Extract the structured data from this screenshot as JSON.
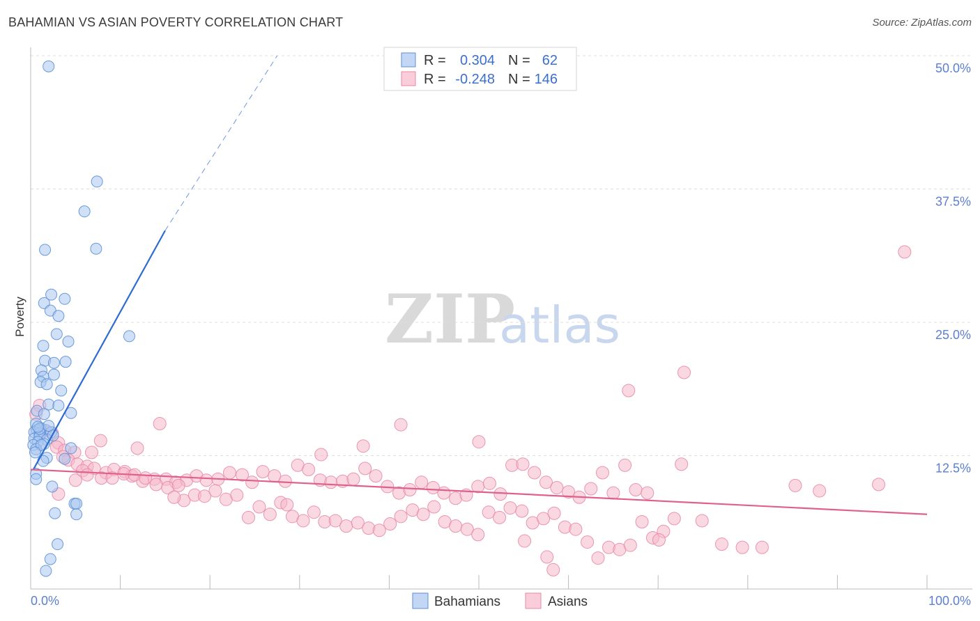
{
  "title": "BAHAMIAN VS ASIAN POVERTY CORRELATION CHART",
  "source": "Source: ZipAtlas.com",
  "watermark": {
    "zip": "ZIP",
    "atlas": "atlas"
  },
  "colors": {
    "bahamians_fill": "#a9c6f0",
    "bahamians_stroke": "#5b8fd6",
    "bahamians_line": "#2e6bd1",
    "asians_fill": "#f6b8cb",
    "asians_stroke": "#e889a8",
    "asians_line": "#e0608d",
    "tick_label": "#5b7fd1",
    "grid": "#dddddd"
  },
  "legend": {
    "r_label": "R =",
    "n_label": "N =",
    "rows": [
      {
        "series": "Bahamians",
        "r": "0.304",
        "n": "62"
      },
      {
        "series": "Asians",
        "r": "-0.248",
        "n": "146"
      }
    ]
  },
  "chart_data": {
    "type": "scatter",
    "xlabel": "",
    "ylabel": "Poverty",
    "xlim": [
      0,
      100
    ],
    "ylim": [
      0,
      50
    ],
    "x_tick_labels": [
      "0.0%",
      "100.0%"
    ],
    "y_ticks": [
      12.5,
      25.0,
      37.5,
      50.0
    ],
    "y_tick_labels": [
      "12.5%",
      "25.0%",
      "37.5%",
      "50.0%"
    ],
    "grid": "horizontal dashed",
    "legend_position": "top-center and bottom",
    "series": [
      {
        "name": "Bahamians",
        "trend": {
          "x0": 0.3,
          "y0": 11.2,
          "x1": 15.0,
          "y1": 33.6,
          "dashed_to_x": 27.5,
          "dashed_to_y": 50.0
        },
        "points": [
          [
            2.0,
            49.0
          ],
          [
            7.4,
            38.2
          ],
          [
            6.0,
            35.4
          ],
          [
            1.6,
            31.8
          ],
          [
            7.3,
            31.9
          ],
          [
            2.3,
            27.6
          ],
          [
            1.5,
            26.8
          ],
          [
            2.2,
            26.1
          ],
          [
            3.8,
            27.2
          ],
          [
            3.1,
            25.6
          ],
          [
            11.0,
            23.7
          ],
          [
            2.9,
            23.9
          ],
          [
            1.4,
            22.8
          ],
          [
            4.2,
            23.2
          ],
          [
            1.6,
            21.4
          ],
          [
            2.6,
            21.2
          ],
          [
            3.9,
            21.3
          ],
          [
            1.2,
            20.5
          ],
          [
            1.4,
            19.9
          ],
          [
            2.6,
            20.1
          ],
          [
            1.1,
            19.4
          ],
          [
            1.8,
            19.2
          ],
          [
            3.4,
            18.6
          ],
          [
            2.0,
            17.3
          ],
          [
            3.1,
            17.2
          ],
          [
            0.7,
            16.7
          ],
          [
            1.5,
            16.4
          ],
          [
            4.5,
            16.5
          ],
          [
            0.6,
            15.5
          ],
          [
            1.1,
            15.1
          ],
          [
            0.7,
            14.9
          ],
          [
            1.7,
            14.9
          ],
          [
            2.3,
            14.7
          ],
          [
            0.4,
            14.7
          ],
          [
            1.0,
            14.6
          ],
          [
            0.4,
            14.1
          ],
          [
            1.0,
            14.3
          ],
          [
            1.8,
            14.0
          ],
          [
            2.5,
            14.4
          ],
          [
            0.8,
            13.8
          ],
          [
            0.3,
            13.5
          ],
          [
            1.5,
            13.6
          ],
          [
            0.6,
            13.1
          ],
          [
            1.2,
            13.5
          ],
          [
            4.5,
            13.2
          ],
          [
            0.5,
            12.8
          ],
          [
            1.8,
            12.3
          ],
          [
            3.8,
            12.2
          ],
          [
            1.4,
            12.0
          ],
          [
            0.6,
            10.8
          ],
          [
            0.6,
            10.3
          ],
          [
            2.4,
            9.6
          ],
          [
            4.9,
            8.0
          ],
          [
            5.1,
            8.0
          ],
          [
            2.7,
            7.1
          ],
          [
            5.1,
            7.0
          ],
          [
            3.0,
            4.2
          ],
          [
            2.2,
            2.8
          ],
          [
            1.7,
            1.7
          ],
          [
            1.0,
            15.0
          ],
          [
            2.0,
            15.3
          ],
          [
            0.8,
            15.2
          ]
        ]
      },
      {
        "name": "Asians",
        "trend": {
          "x0": 0.0,
          "y0": 11.2,
          "x1": 100.0,
          "y1": 7.0
        },
        "points": [
          [
            97.5,
            31.6
          ],
          [
            72.9,
            20.3
          ],
          [
            66.7,
            18.6
          ],
          [
            41.3,
            15.4
          ],
          [
            14.4,
            15.5
          ],
          [
            50.0,
            13.8
          ],
          [
            7.8,
            13.9
          ],
          [
            37.1,
            13.4
          ],
          [
            11.9,
            13.2
          ],
          [
            32.4,
            12.6
          ],
          [
            1.0,
            17.2
          ],
          [
            0.6,
            16.4
          ],
          [
            1.5,
            14.8
          ],
          [
            2.4,
            14.6
          ],
          [
            3.1,
            13.7
          ],
          [
            2.9,
            13.3
          ],
          [
            3.8,
            13.0
          ],
          [
            4.9,
            12.8
          ],
          [
            6.8,
            12.8
          ],
          [
            4.2,
            12.1
          ],
          [
            3.6,
            12.4
          ],
          [
            5.2,
            11.7
          ],
          [
            6.3,
            11.5
          ],
          [
            7.1,
            11.3
          ],
          [
            5.8,
            11.1
          ],
          [
            8.4,
            10.9
          ],
          [
            9.3,
            11.2
          ],
          [
            10.5,
            11.0
          ],
          [
            11.3,
            10.6
          ],
          [
            12.5,
            10.1
          ],
          [
            13.8,
            10.3
          ],
          [
            15.1,
            10.3
          ],
          [
            16.2,
            10.0
          ],
          [
            17.4,
            10.2
          ],
          [
            18.5,
            10.6
          ],
          [
            19.6,
            10.2
          ],
          [
            20.9,
            10.3
          ],
          [
            22.2,
            10.9
          ],
          [
            23.6,
            10.7
          ],
          [
            24.7,
            10.0
          ],
          [
            25.9,
            11.0
          ],
          [
            27.2,
            10.6
          ],
          [
            28.4,
            10.1
          ],
          [
            29.8,
            11.6
          ],
          [
            31.0,
            11.2
          ],
          [
            32.3,
            10.2
          ],
          [
            33.5,
            10.0
          ],
          [
            34.8,
            10.1
          ],
          [
            36.0,
            10.3
          ],
          [
            37.3,
            11.3
          ],
          [
            38.5,
            10.6
          ],
          [
            39.8,
            9.6
          ],
          [
            41.1,
            9.0
          ],
          [
            42.3,
            9.3
          ],
          [
            43.6,
            10.0
          ],
          [
            44.9,
            9.5
          ],
          [
            46.1,
            9.0
          ],
          [
            47.4,
            8.5
          ],
          [
            48.6,
            8.8
          ],
          [
            49.9,
            9.6
          ],
          [
            51.2,
            9.9
          ],
          [
            52.4,
            8.9
          ],
          [
            53.7,
            11.6
          ],
          [
            54.9,
            11.7
          ],
          [
            56.2,
            10.9
          ],
          [
            57.5,
            10.0
          ],
          [
            58.7,
            9.5
          ],
          [
            60.0,
            9.1
          ],
          [
            61.2,
            8.6
          ],
          [
            62.5,
            9.4
          ],
          [
            63.8,
            10.9
          ],
          [
            65.0,
            9.0
          ],
          [
            66.3,
            11.6
          ],
          [
            67.5,
            9.3
          ],
          [
            68.8,
            9.0
          ],
          [
            17.1,
            8.3
          ],
          [
            18.3,
            8.8
          ],
          [
            19.4,
            8.7
          ],
          [
            20.6,
            9.2
          ],
          [
            21.8,
            8.4
          ],
          [
            23.0,
            8.8
          ],
          [
            24.3,
            6.7
          ],
          [
            25.5,
            7.7
          ],
          [
            26.7,
            7.0
          ],
          [
            27.9,
            8.1
          ],
          [
            29.2,
            6.8
          ],
          [
            30.4,
            6.4
          ],
          [
            31.6,
            7.2
          ],
          [
            32.8,
            6.3
          ],
          [
            34.0,
            6.4
          ],
          [
            35.2,
            5.9
          ],
          [
            36.5,
            6.2
          ],
          [
            37.7,
            5.7
          ],
          [
            38.9,
            5.5
          ],
          [
            40.1,
            6.1
          ],
          [
            41.3,
            6.8
          ],
          [
            42.6,
            7.4
          ],
          [
            43.8,
            7.0
          ],
          [
            45.0,
            7.7
          ],
          [
            46.2,
            6.3
          ],
          [
            47.4,
            5.9
          ],
          [
            48.7,
            5.6
          ],
          [
            49.9,
            5.1
          ],
          [
            51.1,
            7.2
          ],
          [
            52.3,
            6.7
          ],
          [
            53.5,
            7.6
          ],
          [
            54.8,
            7.3
          ],
          [
            56.0,
            6.2
          ],
          [
            57.2,
            6.6
          ],
          [
            58.4,
            7.1
          ],
          [
            59.6,
            5.8
          ],
          [
            60.8,
            5.6
          ],
          [
            62.1,
            4.4
          ],
          [
            63.3,
            2.9
          ],
          [
            64.5,
            3.9
          ],
          [
            65.7,
            3.7
          ],
          [
            66.9,
            4.1
          ],
          [
            68.2,
            6.3
          ],
          [
            69.4,
            4.8
          ],
          [
            70.6,
            5.4
          ],
          [
            3.1,
            8.9
          ],
          [
            5.0,
            10.2
          ],
          [
            6.3,
            10.7
          ],
          [
            7.9,
            10.4
          ],
          [
            9.1,
            10.4
          ],
          [
            10.4,
            10.8
          ],
          [
            11.6,
            10.7
          ],
          [
            12.8,
            10.4
          ],
          [
            14.0,
            9.8
          ],
          [
            15.3,
            9.5
          ],
          [
            16.5,
            9.7
          ],
          [
            72.6,
            11.7
          ],
          [
            74.9,
            6.4
          ],
          [
            77.1,
            4.2
          ],
          [
            79.4,
            3.9
          ],
          [
            81.6,
            3.9
          ],
          [
            85.3,
            9.7
          ],
          [
            94.6,
            9.8
          ],
          [
            88.0,
            9.2
          ],
          [
            55.1,
            4.5
          ],
          [
            58.3,
            1.8
          ],
          [
            57.6,
            3.0
          ],
          [
            71.8,
            6.6
          ],
          [
            70.1,
            4.6
          ],
          [
            16.0,
            8.6
          ],
          [
            28.6,
            7.9
          ]
        ]
      }
    ]
  },
  "bottom_legend": [
    "Bahamians",
    "Asians"
  ]
}
